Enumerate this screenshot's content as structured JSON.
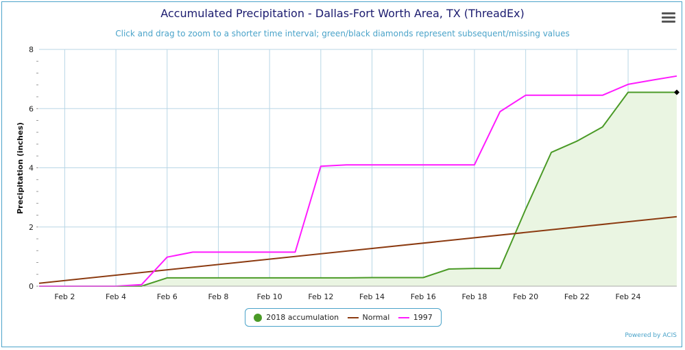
{
  "title": "Accumulated Precipitation - Dallas-Fort Worth Area, TX (ThreadEx)",
  "subtitle": "Click and drag to zoom to a shorter time interval; green/black diamonds represent subsequent/missing values",
  "credits": "Powered by ACIS",
  "menu_icon": "hamburger-menu-icon",
  "colors": {
    "accumulation_2018": "#4a9a26",
    "accumulation_2018_fill": "#eaf5e2",
    "normal": "#8b3a10",
    "y1997": "#ff1aff",
    "grid": "#b8d6e6",
    "missing_marker": "#000000"
  },
  "chart_data": {
    "type": "line",
    "title": "Accumulated Precipitation - Dallas-Fort Worth Area, TX (ThreadEx)",
    "subtitle": "Click and drag to zoom to a shorter time interval; green/black diamonds represent subsequent/missing values",
    "xlabel": "",
    "ylabel": "Precipitation (inches)",
    "ylim": [
      0,
      8
    ],
    "yticks": [
      "0",
      "2",
      "4",
      "6",
      "8"
    ],
    "xlim": [
      1,
      25.9
    ],
    "xticks": [
      "Feb 2",
      "Feb 4",
      "Feb 6",
      "Feb 8",
      "Feb 10",
      "Feb 12",
      "Feb 14",
      "Feb 16",
      "Feb 18",
      "Feb 20",
      "Feb 22",
      "Feb 24"
    ],
    "grid": true,
    "legend_position": "bottom-center",
    "series": [
      {
        "name": "2018 accumulation",
        "style": "area",
        "x": [
          1,
          2,
          3,
          4,
          5,
          6,
          7,
          8,
          9,
          10,
          11,
          12,
          13,
          14,
          15,
          16,
          17,
          18,
          19,
          20,
          21,
          22,
          23,
          24,
          25,
          25.9
        ],
        "values": [
          0,
          0,
          0,
          0,
          0,
          0.28,
          0.28,
          0.28,
          0.28,
          0.28,
          0.28,
          0.28,
          0.28,
          0.29,
          0.29,
          0.29,
          0.58,
          0.6,
          0.6,
          2.6,
          4.52,
          4.9,
          5.38,
          6.55,
          6.55,
          6.55
        ],
        "marker": {
          "x": 25.9,
          "value": 6.55,
          "shape": "diamond",
          "meaning": "missing"
        }
      },
      {
        "name": "Normal",
        "style": "line",
        "x": [
          1,
          25.9
        ],
        "values": [
          0.1,
          2.35
        ]
      },
      {
        "name": "1997",
        "style": "line",
        "x": [
          1,
          2,
          3,
          4,
          5,
          6,
          7,
          8,
          9,
          10,
          11,
          12,
          13,
          14,
          15,
          16,
          17,
          18,
          19,
          20,
          21,
          22,
          23,
          24,
          25,
          25.9
        ],
        "values": [
          0,
          0,
          0,
          0,
          0.05,
          0.98,
          1.15,
          1.15,
          1.15,
          1.15,
          1.15,
          4.05,
          4.1,
          4.1,
          4.1,
          4.1,
          4.1,
          4.1,
          5.9,
          6.45,
          6.45,
          6.45,
          6.45,
          6.82,
          6.97,
          7.1
        ]
      }
    ]
  },
  "legend": [
    {
      "label": "2018 accumulation",
      "symbol": "dot"
    },
    {
      "label": "Normal",
      "symbol": "line"
    },
    {
      "label": "1997",
      "symbol": "line"
    }
  ]
}
